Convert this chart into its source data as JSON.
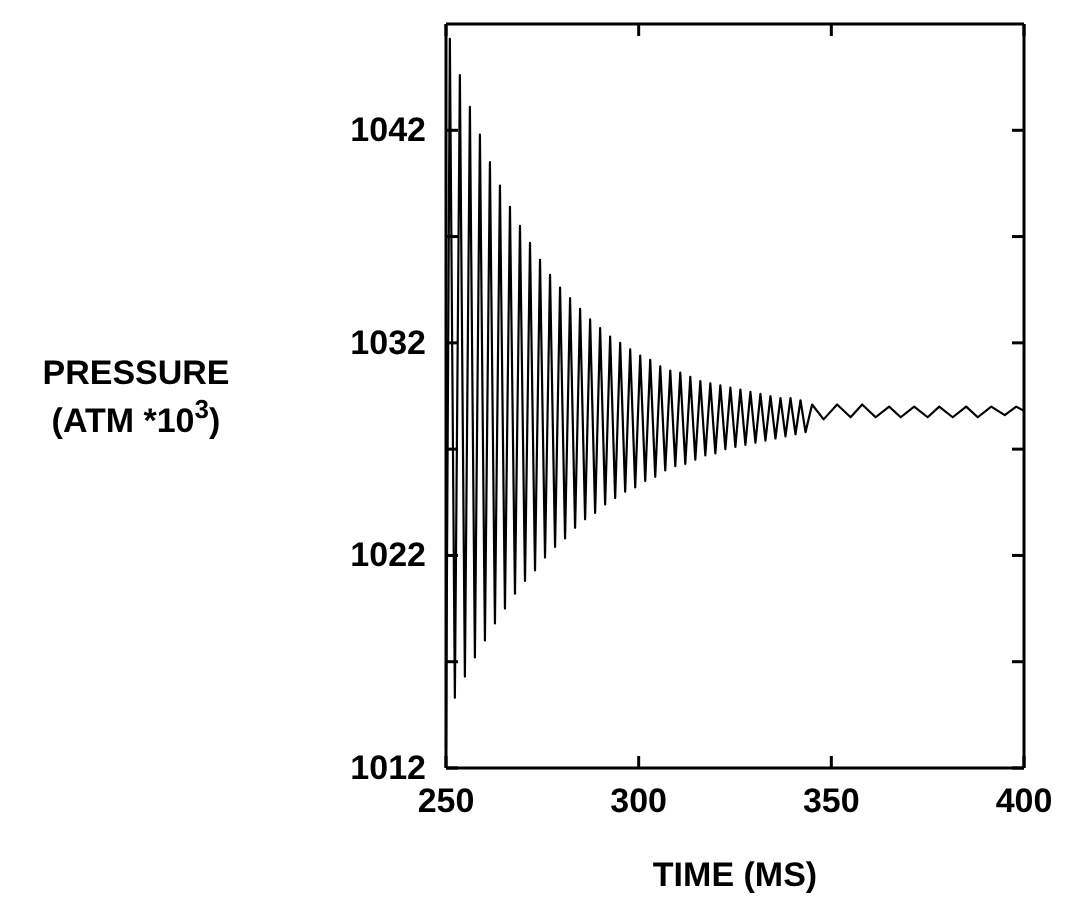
{
  "chart_data": {
    "type": "line",
    "xlabel": "TIME (MS)",
    "ylabel": "PRESSURE\n(ATM *10$^{3}$)",
    "xlim": [
      250,
      400
    ],
    "xticks": [
      250,
      300,
      350,
      400
    ],
    "ylim": [
      1012,
      1047
    ],
    "yticks": [
      1012,
      {
        "value": 1017,
        "label": null
      },
      1022,
      {
        "value": 1027,
        "label": null
      },
      1032,
      {
        "value": 1037,
        "label": null
      },
      1042
    ],
    "marker": "none",
    "line_style": "solid",
    "series": [
      {
        "color": "#000000",
        "x": [
          250,
          251.0,
          252.3,
          253.6,
          254.9,
          256.2,
          257.5,
          258.8,
          260.1,
          261.4,
          262.7,
          264.0,
          265.3,
          266.6,
          267.9,
          269.2,
          270.5,
          271.8,
          273.1,
          274.4,
          275.7,
          277.0,
          278.3,
          279.6,
          280.9,
          282.2,
          283.5,
          284.8,
          286.1,
          287.4,
          288.7,
          290.0,
          291.3,
          292.6,
          293.9,
          295.2,
          296.5,
          297.8,
          299.1,
          300.4,
          301.7,
          303.0,
          304.3,
          305.6,
          306.9,
          308.2,
          309.5,
          310.8,
          312.1,
          313.4,
          314.7,
          316.0,
          317.3,
          318.6,
          319.9,
          321.2,
          322.5,
          323.8,
          325.1,
          326.4,
          327.7,
          329.0,
          330.3,
          331.6,
          332.9,
          334.2,
          335.5,
          336.8,
          338.1,
          339.4,
          340.7,
          342.0,
          343.3,
          345,
          348,
          351.5,
          355,
          358,
          361.5,
          365,
          368,
          371.5,
          375,
          378,
          381.5,
          385,
          388,
          391.5,
          395,
          398,
          400
        ],
        "values": [
          1013.0,
          1046.3,
          1015.3,
          1044.6,
          1016.3,
          1043.1,
          1017.2,
          1041.8,
          1018.0,
          1040.5,
          1018.8,
          1039.4,
          1019.5,
          1038.4,
          1020.2,
          1037.5,
          1020.8,
          1036.7,
          1021.3,
          1035.9,
          1021.9,
          1035.2,
          1022.4,
          1034.6,
          1022.8,
          1034.1,
          1023.3,
          1033.6,
          1023.7,
          1033.1,
          1024.0,
          1032.7,
          1024.4,
          1032.3,
          1024.7,
          1032.0,
          1025.0,
          1031.7,
          1025.2,
          1031.4,
          1025.5,
          1031.2,
          1025.7,
          1030.9,
          1026.0,
          1030.7,
          1026.2,
          1030.6,
          1026.3,
          1030.4,
          1026.5,
          1030.2,
          1026.7,
          1030.1,
          1026.8,
          1030.0,
          1027.0,
          1029.9,
          1027.1,
          1029.8,
          1027.2,
          1029.7,
          1027.3,
          1029.6,
          1027.4,
          1029.5,
          1027.5,
          1029.4,
          1027.6,
          1029.4,
          1027.7,
          1029.3,
          1027.8,
          1029.1,
          1028.4,
          1029.1,
          1028.5,
          1029.1,
          1028.5,
          1029.0,
          1028.5,
          1029.0,
          1028.5,
          1029.0,
          1028.5,
          1029.0,
          1028.5,
          1029.0,
          1028.6,
          1029.0,
          1028.8
        ]
      }
    ]
  }
}
